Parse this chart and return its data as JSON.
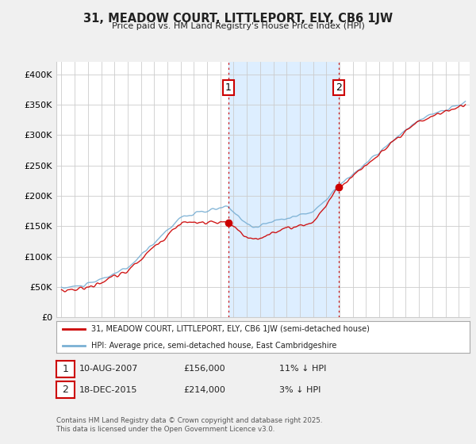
{
  "title": "31, MEADOW COURT, LITTLEPORT, ELY, CB6 1JW",
  "subtitle": "Price paid vs. HM Land Registry's House Price Index (HPI)",
  "legend_line1": "31, MEADOW COURT, LITTLEPORT, ELY, CB6 1JW (semi-detached house)",
  "legend_line2": "HPI: Average price, semi-detached house, East Cambridgeshire",
  "annotation1_date": "10-AUG-2007",
  "annotation1_price": "£156,000",
  "annotation1_hpi": "11% ↓ HPI",
  "annotation2_date": "18-DEC-2015",
  "annotation2_price": "£214,000",
  "annotation2_hpi": "3% ↓ HPI",
  "footer": "Contains HM Land Registry data © Crown copyright and database right 2025.\nThis data is licensed under the Open Government Licence v3.0.",
  "ylim": [
    0,
    420000
  ],
  "yticks": [
    0,
    50000,
    100000,
    150000,
    200000,
    250000,
    300000,
    350000,
    400000
  ],
  "ytick_labels": [
    "£0",
    "£50K",
    "£100K",
    "£150K",
    "£200K",
    "£250K",
    "£300K",
    "£350K",
    "£400K"
  ],
  "red_color": "#cc0000",
  "blue_color": "#7ab0d4",
  "shade_color": "#ddeeff",
  "background_color": "#f0f0f0",
  "plot_bg_color": "#ffffff",
  "vline_color": "#cc0000",
  "sale1_year": 2007.6,
  "sale1_price": 156000,
  "sale2_year": 2015.96,
  "sale2_price": 214000,
  "xmin": 1995,
  "xmax": 2025.5
}
